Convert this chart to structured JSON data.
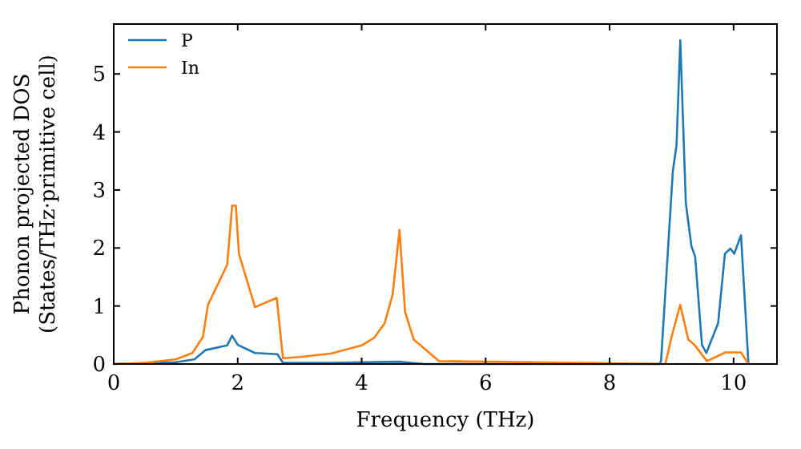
{
  "chart_data": {
    "type": "line",
    "xlabel": "Frequency (THz)",
    "ylabel": "Phonon projected DOS\n(States/THz·primitive cell)",
    "xlim": [
      0,
      10.7
    ],
    "ylim": [
      0,
      5.86
    ],
    "xticks": [
      0,
      2,
      4,
      6,
      8,
      10
    ],
    "yticks": [
      0,
      1,
      2,
      3,
      4,
      5
    ],
    "legend": "top left",
    "grid": false,
    "series": [
      {
        "name": "P",
        "color": "#1f77b4",
        "x": [
          0,
          1.0,
          1.3,
          1.48,
          1.83,
          1.91,
          2.0,
          2.28,
          2.64,
          2.73,
          3.5,
          4.6,
          5.0,
          8.8,
          8.83,
          9.02,
          9.08,
          9.14,
          9.23,
          9.32,
          9.38,
          9.49,
          9.56,
          9.75,
          9.86,
          9.95,
          10.01,
          10.12,
          10.24
        ],
        "values": [
          0,
          0.03,
          0.08,
          0.24,
          0.32,
          0.49,
          0.33,
          0.19,
          0.17,
          0.02,
          0.02,
          0.04,
          0,
          0,
          0.05,
          3.32,
          3.78,
          5.58,
          2.77,
          2.03,
          1.85,
          0.33,
          0.19,
          0.7,
          1.9,
          1.99,
          1.9,
          2.22,
          0
        ]
      },
      {
        "name": "In",
        "color": "#ff7f0e",
        "x": [
          0,
          0.5,
          1.0,
          1.27,
          1.44,
          1.52,
          1.83,
          1.91,
          1.97,
          2.02,
          2.28,
          2.63,
          2.73,
          3.0,
          3.5,
          4.0,
          4.2,
          4.37,
          4.5,
          4.61,
          4.7,
          4.84,
          5.25,
          8.9,
          9.0,
          9.14,
          9.27,
          9.37,
          9.57,
          9.87,
          10.12,
          10.24
        ],
        "values": [
          0,
          0.02,
          0.08,
          0.19,
          0.47,
          1.02,
          1.71,
          2.73,
          2.73,
          1.9,
          0.98,
          1.14,
          0.1,
          0.12,
          0.18,
          0.32,
          0.45,
          0.7,
          1.2,
          2.31,
          0.9,
          0.42,
          0.05,
          0,
          0.47,
          1.02,
          0.42,
          0.33,
          0.05,
          0.2,
          0.2,
          0
        ]
      }
    ]
  }
}
